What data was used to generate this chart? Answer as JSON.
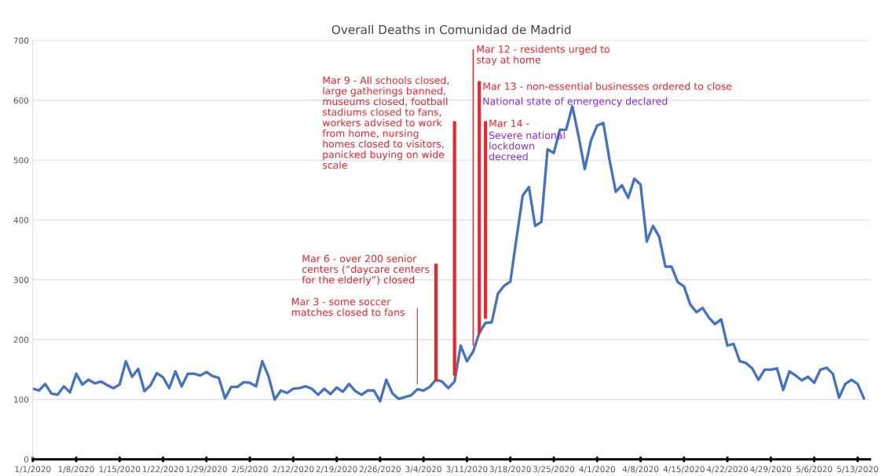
{
  "chart_data": {
    "type": "line",
    "title": "Overall Deaths in Comunidad de Madrid",
    "x": [
      "2020-01-01",
      "2020-01-02",
      "2020-01-03",
      "2020-01-04",
      "2020-01-05",
      "2020-01-06",
      "2020-01-07",
      "2020-01-08",
      "2020-01-09",
      "2020-01-10",
      "2020-01-11",
      "2020-01-12",
      "2020-01-13",
      "2020-01-14",
      "2020-01-15",
      "2020-01-16",
      "2020-01-17",
      "2020-01-18",
      "2020-01-19",
      "2020-01-20",
      "2020-01-21",
      "2020-01-22",
      "2020-01-23",
      "2020-01-24",
      "2020-01-25",
      "2020-01-26",
      "2020-01-27",
      "2020-01-28",
      "2020-01-29",
      "2020-01-30",
      "2020-01-31",
      "2020-02-01",
      "2020-02-02",
      "2020-02-03",
      "2020-02-04",
      "2020-02-05",
      "2020-02-06",
      "2020-02-07",
      "2020-02-08",
      "2020-02-09",
      "2020-02-10",
      "2020-02-11",
      "2020-02-12",
      "2020-02-13",
      "2020-02-14",
      "2020-02-15",
      "2020-02-16",
      "2020-02-17",
      "2020-02-18",
      "2020-02-19",
      "2020-02-20",
      "2020-02-21",
      "2020-02-22",
      "2020-02-23",
      "2020-02-24",
      "2020-02-25",
      "2020-02-26",
      "2020-02-27",
      "2020-02-28",
      "2020-02-29",
      "2020-03-01",
      "2020-03-02",
      "2020-03-03",
      "2020-03-04",
      "2020-03-05",
      "2020-03-06",
      "2020-03-07",
      "2020-03-08",
      "2020-03-09",
      "2020-03-10",
      "2020-03-11",
      "2020-03-12",
      "2020-03-13",
      "2020-03-14",
      "2020-03-15",
      "2020-03-16",
      "2020-03-17",
      "2020-03-18",
      "2020-03-19",
      "2020-03-20",
      "2020-03-21",
      "2020-03-22",
      "2020-03-23",
      "2020-03-24",
      "2020-03-25",
      "2020-03-26",
      "2020-03-27",
      "2020-03-28",
      "2020-03-29",
      "2020-03-30",
      "2020-03-31",
      "2020-04-01",
      "2020-04-02",
      "2020-04-03",
      "2020-04-04",
      "2020-04-05",
      "2020-04-06",
      "2020-04-07",
      "2020-04-08",
      "2020-04-09",
      "2020-04-10",
      "2020-04-11",
      "2020-04-12",
      "2020-04-13",
      "2020-04-14",
      "2020-04-15",
      "2020-04-16",
      "2020-04-17",
      "2020-04-18",
      "2020-04-19",
      "2020-04-20",
      "2020-04-21",
      "2020-04-22",
      "2020-04-23",
      "2020-04-24",
      "2020-04-25",
      "2020-04-26",
      "2020-04-27",
      "2020-04-28",
      "2020-04-29",
      "2020-04-30",
      "2020-05-01",
      "2020-05-02",
      "2020-05-03",
      "2020-05-04",
      "2020-05-05",
      "2020-05-06",
      "2020-05-07",
      "2020-05-08",
      "2020-05-09",
      "2020-05-10",
      "2020-05-11",
      "2020-05-12",
      "2020-05-13",
      "2020-05-14"
    ],
    "series": [
      {
        "color": "#4472c4",
        "values": [
          118,
          115,
          126,
          110,
          108,
          122,
          112,
          143,
          125,
          133,
          127,
          130,
          124,
          119,
          125,
          164,
          138,
          151,
          114,
          124,
          144,
          137,
          119,
          147,
          122,
          143,
          143,
          140,
          146,
          139,
          136,
          102,
          121,
          121,
          129,
          128,
          122,
          164,
          139,
          100,
          115,
          111,
          118,
          119,
          122,
          118,
          108,
          118,
          109,
          120,
          113,
          126,
          114,
          108,
          115,
          115,
          97,
          133,
          110,
          101,
          104,
          107,
          117,
          115,
          121,
          133,
          130,
          119,
          130,
          190,
          164,
          180,
          212,
          228,
          229,
          277,
          290,
          297,
          370,
          441,
          455,
          390,
          397,
          518,
          512,
          551,
          551,
          590,
          540,
          485,
          533,
          558,
          562,
          500,
          447,
          458,
          437,
          469,
          459,
          364,
          390,
          372,
          322,
          322,
          296,
          289,
          259,
          246,
          253,
          237,
          226,
          234,
          190,
          193,
          164,
          161,
          152,
          133,
          150,
          150,
          152,
          116,
          147,
          140,
          132,
          138,
          128,
          150,
          153,
          143,
          103,
          126,
          133,
          126,
          102
        ]
      }
    ],
    "xlim": [
      "2020-01-01",
      "2020-05-15"
    ],
    "xticks": [
      {
        "value": "2020-01-01",
        "label": "1/1/2020"
      },
      {
        "value": "2020-01-08",
        "label": "1/8/2020"
      },
      {
        "value": "2020-01-15",
        "label": "1/15/2020"
      },
      {
        "value": "2020-01-22",
        "label": "1/22/2020"
      },
      {
        "value": "2020-01-29",
        "label": "1/29/2020"
      },
      {
        "value": "2020-02-05",
        "label": "2/5/2020"
      },
      {
        "value": "2020-02-12",
        "label": "2/12/2020"
      },
      {
        "value": "2020-02-19",
        "label": "2/19/2020"
      },
      {
        "value": "2020-02-26",
        "label": "2/26/2020"
      },
      {
        "value": "2020-03-04",
        "label": "3/4/2020"
      },
      {
        "value": "2020-03-11",
        "label": "3/11/2020"
      },
      {
        "value": "2020-03-18",
        "label": "3/18/2020"
      },
      {
        "value": "2020-03-25",
        "label": "3/25/2020"
      },
      {
        "value": "2020-04-01",
        "label": "4/1/2020"
      },
      {
        "value": "2020-04-08",
        "label": "4/8/2020"
      },
      {
        "value": "2020-04-15",
        "label": "4/15/2020"
      },
      {
        "value": "2020-04-22",
        "label": "4/22/2020"
      },
      {
        "value": "2020-04-29",
        "label": "4/29/2020"
      },
      {
        "value": "2020-05-06",
        "label": "5/6/2020"
      },
      {
        "value": "2020-05-13",
        "label": "5/13/2020"
      }
    ],
    "ylim": [
      0,
      700
    ],
    "yticks": [
      0,
      100,
      200,
      300,
      400,
      500,
      600,
      700
    ],
    "grid": "y",
    "marker": "none",
    "line_style": "solid",
    "ref_lines": [
      {
        "axis": "x",
        "value": "2020-03-03",
        "color": "#e8262c",
        "label": "Mar 3 - some soccer\nmatches closed to fans"
      },
      {
        "axis": "x",
        "value": "2020-03-06",
        "color": "#e8262c",
        "label": "Mar 6 - over 200 senior\ncenters (“daycare centers\nfor the elderly”) closed"
      },
      {
        "axis": "x",
        "value": "2020-03-09",
        "color": "#e8262c",
        "label": "Mar 9 - All schools closed,\nlarge gatherings banned,\nmuseums closed, football\nstadiums closed to fans,\nworkers advised to work\nfrom home, nursing\nhomes closed to visitors,\npanicked buying on wide\nscale"
      },
      {
        "axis": "x",
        "value": "2020-03-12",
        "color": "#e8262c",
        "label": "Mar 12 - residents urged to\nstay at home"
      },
      {
        "axis": "x",
        "value": "2020-03-13",
        "color": "#e8262c",
        "label": "Mar 13 - non-essential businesses ordered to close"
      },
      {
        "axis": "x",
        "value": "2020-03-14",
        "color": "#e8262c",
        "label": "Mar 14 -"
      }
    ],
    "annotations": [
      "National state of emergency declared",
      "Severe national\nlockdown\ndecreed"
    ]
  }
}
